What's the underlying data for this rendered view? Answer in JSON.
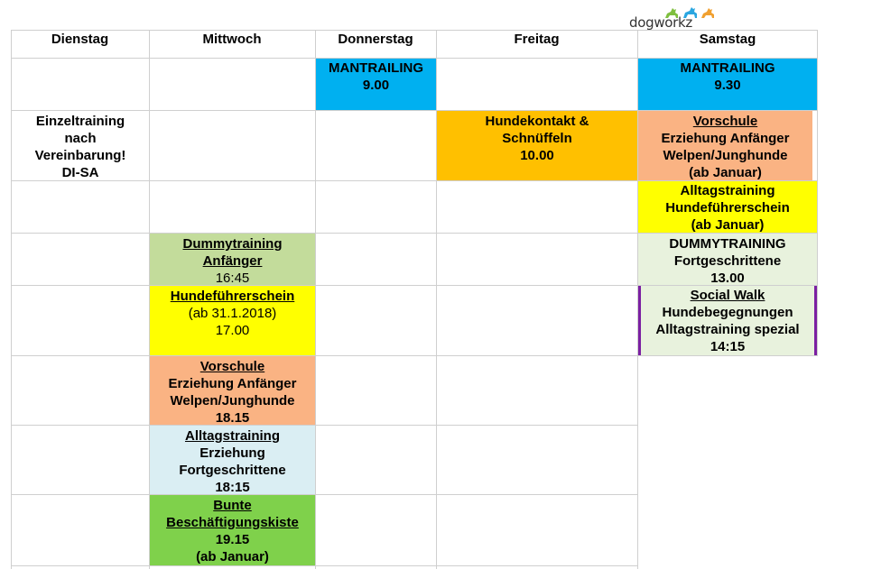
{
  "logo": {
    "text": "dogworkz"
  },
  "header": {
    "days": [
      "Dienstag",
      "Mittwoch",
      "Donnerstag",
      "Freitag",
      "Samstag"
    ]
  },
  "colors": {
    "blue": "#00b0f0",
    "orange": "#ffc000",
    "peach": "#fab383",
    "yellow": "#ffff00",
    "sage": "#c3dc9b",
    "mint": "#e8f2dd",
    "lightblue": "#daeef3",
    "green": "#7fd14b",
    "purple": "#7b1fa2"
  },
  "dienstag": {
    "einzel": [
      "Einzeltraining",
      "nach",
      "Vereinbarung!",
      "DI-SA"
    ]
  },
  "mittwoch": {
    "dummy": {
      "title": "Dummytraining Anfänger",
      "time": "16:45"
    },
    "hundefuehrer": {
      "title": "Hundeführerschein",
      "date": "(ab 31.1.2018)",
      "time": "17.00"
    },
    "vorschule": {
      "title": "Vorschule",
      "line2": "Erziehung Anfänger",
      "line3": "Welpen/Junghunde",
      "time": "18.15"
    },
    "alltag": {
      "title": "Alltagstraining",
      "line2": "Erziehung",
      "line3": "Fortgeschrittene",
      "time": "18:15"
    },
    "bunte": {
      "title1": "Bunte",
      "title2": "Beschäftigungskiste",
      "time": "19.15",
      "note": "(ab Januar)"
    }
  },
  "donnerstag": {
    "mantrailing": {
      "title": "MANTRAILING",
      "time": "9.00"
    }
  },
  "freitag": {
    "hundekontakt": {
      "title1": "Hundekontakt &",
      "title2": "Schnüffeln",
      "time": "10.00"
    }
  },
  "samstag": {
    "mantrailing": {
      "title": "MANTRAILING",
      "time": "9.30"
    },
    "vorschule": {
      "title": "Vorschule",
      "line2": "Erziehung Anfänger",
      "line3": "Welpen/Junghunde",
      "note": "(ab Januar)"
    },
    "alltag": {
      "title1": "Alltagstraining",
      "title2": "Hundeführerschein",
      "note": "(ab Januar)"
    },
    "dummy": {
      "title": "DUMMYTRAINING",
      "line2": "Fortgeschrittene",
      "time": "13.00"
    },
    "social": {
      "title": "Social Walk",
      "line2": "Hundebegegnungen",
      "line3": "Alltagstraining spezial",
      "time": "14:15"
    }
  }
}
